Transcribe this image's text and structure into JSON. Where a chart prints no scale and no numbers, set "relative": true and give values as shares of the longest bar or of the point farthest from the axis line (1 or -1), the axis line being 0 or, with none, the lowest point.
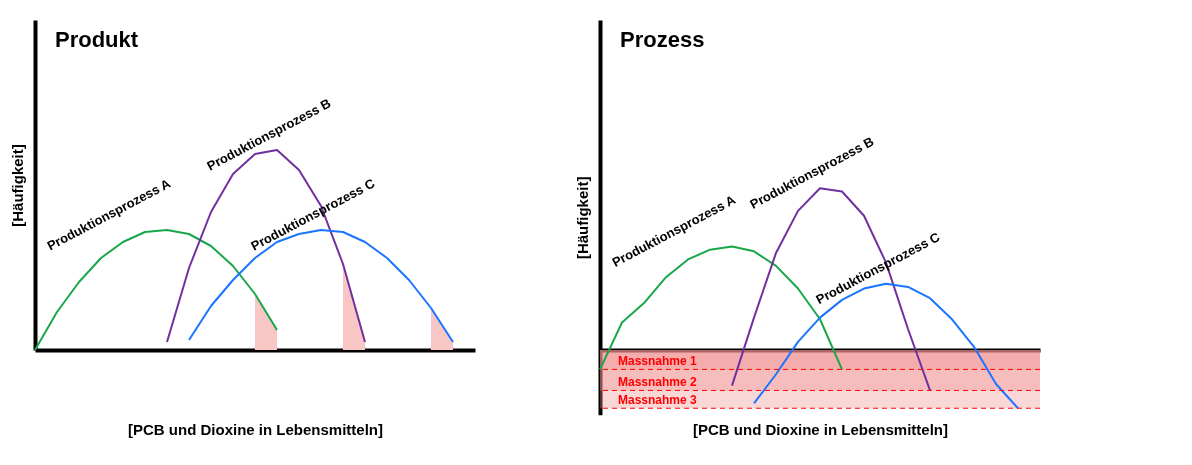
{
  "chart_data": [
    {
      "type": "line",
      "title": "Produkt",
      "xlabel": "[PCB und Dioxine in Lebensmitteln]",
      "ylabel": "[Häufigkeit]",
      "relative": true,
      "tick_labels": false,
      "grid": false,
      "legend": false,
      "categories": [
        null,
        null,
        null,
        null,
        null,
        null,
        null,
        null,
        null,
        null,
        null,
        null,
        null,
        null,
        null,
        null,
        null,
        null,
        null,
        null,
        null
      ],
      "series": [
        {
          "type": "area",
          "color": "#f9c6c6",
          "values": [
            null,
            null,
            null,
            null,
            null,
            null,
            null,
            null,
            null,
            null,
            0.28,
            0.1,
            null,
            null,
            null,
            null,
            null,
            null,
            null,
            null,
            null
          ]
        },
        {
          "type": "area",
          "color": "#f9c6c6",
          "values": [
            null,
            null,
            null,
            null,
            null,
            null,
            null,
            null,
            null,
            null,
            null,
            null,
            null,
            null,
            0.43,
            0.04,
            null,
            null,
            null,
            null,
            null
          ]
        },
        {
          "type": "area",
          "color": "#f9c6c6",
          "values": [
            null,
            null,
            null,
            null,
            null,
            null,
            null,
            null,
            null,
            null,
            null,
            null,
            null,
            null,
            null,
            null,
            null,
            null,
            0.21,
            0.04,
            null
          ]
        },
        {
          "name": "Produktionsprozess A",
          "color": "#1aa64a",
          "values": [
            0,
            0.19,
            0.34,
            0.46,
            0.54,
            0.59,
            0.6,
            0.58,
            0.52,
            0.42,
            0.28,
            0.1,
            null,
            null,
            null,
            null,
            null,
            null,
            null,
            null,
            null
          ]
        },
        {
          "name": "Produktionsprozess B",
          "color": "#7030a0",
          "values": [
            null,
            null,
            null,
            null,
            null,
            null,
            0.04,
            0.41,
            0.69,
            0.88,
            0.98,
            1,
            0.9,
            0.72,
            0.43,
            0.04,
            null,
            null,
            null,
            null,
            null
          ]
        },
        {
          "name": "Produktionsprozess C",
          "color": "#1a75ff",
          "values": [
            null,
            null,
            null,
            null,
            null,
            null,
            null,
            0.05,
            0.22,
            0.35,
            0.46,
            0.54,
            0.58,
            0.6,
            0.59,
            0.54,
            0.46,
            0.35,
            0.21,
            0.04,
            null
          ]
        }
      ]
    },
    {
      "type": "line",
      "title": "Prozess",
      "xlabel": "[PCB und Dioxine in Lebensmitteln]",
      "ylabel": "[Häufigkeit]",
      "relative": true,
      "tick_labels": false,
      "grid": false,
      "legend": false,
      "categories": [
        null,
        null,
        null,
        null,
        null,
        null,
        null,
        null,
        null,
        null,
        null,
        null,
        null,
        null,
        null,
        null,
        null,
        null,
        null,
        null,
        null
      ],
      "series": [
        {
          "name": "Produktionsprozess A",
          "color": "#1aa64a",
          "values": [
            -0.12,
            0.17,
            0.29,
            0.45,
            0.56,
            0.62,
            0.64,
            0.61,
            0.52,
            0.38,
            0.19,
            -0.12,
            null,
            null,
            null,
            null,
            null,
            null,
            null,
            null,
            null
          ]
        },
        {
          "name": "Produktionsprozess B",
          "color": "#7030a0",
          "values": [
            null,
            null,
            null,
            null,
            null,
            null,
            -0.22,
            0.2,
            0.6,
            0.86,
            1,
            0.98,
            0.83,
            0.54,
            0.13,
            -0.25,
            null,
            null,
            null,
            null,
            null
          ]
        },
        {
          "name": "Produktionsprozess C",
          "color": "#1a75ff",
          "values": [
            null,
            null,
            null,
            null,
            null,
            null,
            null,
            -0.33,
            -0.15,
            0.05,
            0.2,
            0.31,
            0.38,
            0.41,
            0.39,
            0.32,
            0.19,
            0.02,
            -0.21,
            -0.36,
            null
          ]
        }
      ],
      "bands": [
        {
          "axis": "y",
          "from": -0.12,
          "to": 0,
          "color": "#f28b8b"
        },
        {
          "axis": "y",
          "from": -0.25,
          "to": 0,
          "color": "#f28b8b"
        },
        {
          "axis": "y",
          "from": -0.36,
          "to": 0,
          "color": "#f28b8b"
        }
      ],
      "ref_lines": [
        {
          "axis": "y",
          "value": -0.12,
          "label": "Massnahme 1",
          "color": "#ff0000",
          "line_style": "dashed"
        },
        {
          "axis": "y",
          "value": -0.25,
          "label": "Massnahme 2",
          "color": "#ff0000",
          "line_style": "dashed"
        },
        {
          "axis": "y",
          "value": -0.36,
          "label": "Massnahme 3",
          "color": "#ff0000",
          "line_style": "dashed"
        }
      ]
    }
  ]
}
